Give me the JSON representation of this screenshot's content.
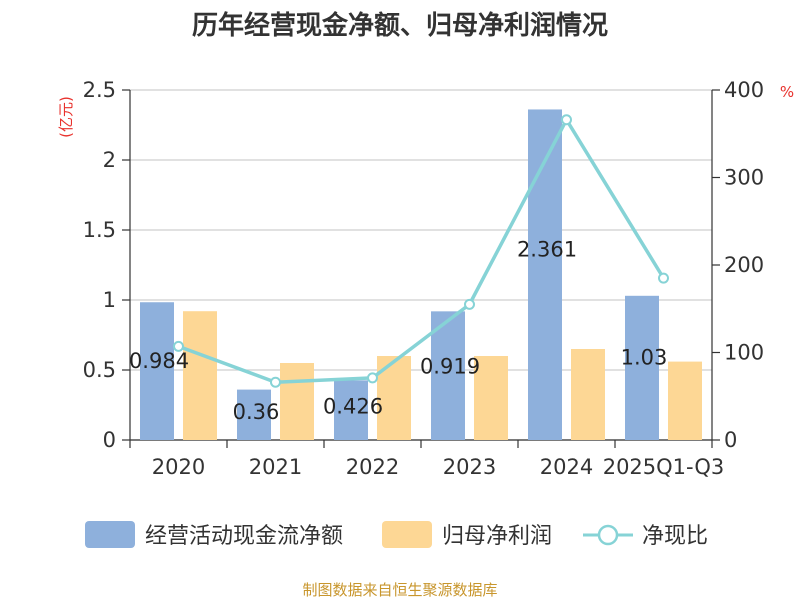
{
  "chart_data": {
    "type": "bar",
    "title": "历年经营现金净额、归母净利润情况",
    "left_unit": "(亿元)",
    "right_unit": "%",
    "categories": [
      "2020",
      "2021",
      "2022",
      "2023",
      "2024",
      "2025Q1-Q3"
    ],
    "ylim_left": [
      0,
      2.5
    ],
    "left_ticks": [
      "0",
      "0.5",
      "1",
      "1.5",
      "2",
      "2.5"
    ],
    "ylim_right": [
      0,
      400
    ],
    "right_ticks": [
      "0",
      "100",
      "200",
      "300",
      "400"
    ],
    "grid": true,
    "legend_position": "bottom",
    "series": [
      {
        "name": "经营活动现金流净额",
        "type": "bar",
        "axis": "left",
        "color": "#8eb0dc",
        "values": [
          0.984,
          0.36,
          0.426,
          0.919,
          2.361,
          1.03
        ],
        "labels": [
          "0.984",
          "0.36",
          "0.426",
          "0.919",
          "2.361",
          "1.03"
        ]
      },
      {
        "name": "归母净利润",
        "type": "bar",
        "axis": "left",
        "color": "#fdd795",
        "values": [
          0.92,
          0.55,
          0.6,
          0.6,
          0.65,
          0.56
        ]
      },
      {
        "name": "净现比",
        "type": "line",
        "axis": "right",
        "color": "#86d3d6",
        "values": [
          107,
          66,
          71,
          155,
          366,
          185
        ]
      }
    ],
    "source": "制图数据来自恒生聚源数据库"
  }
}
